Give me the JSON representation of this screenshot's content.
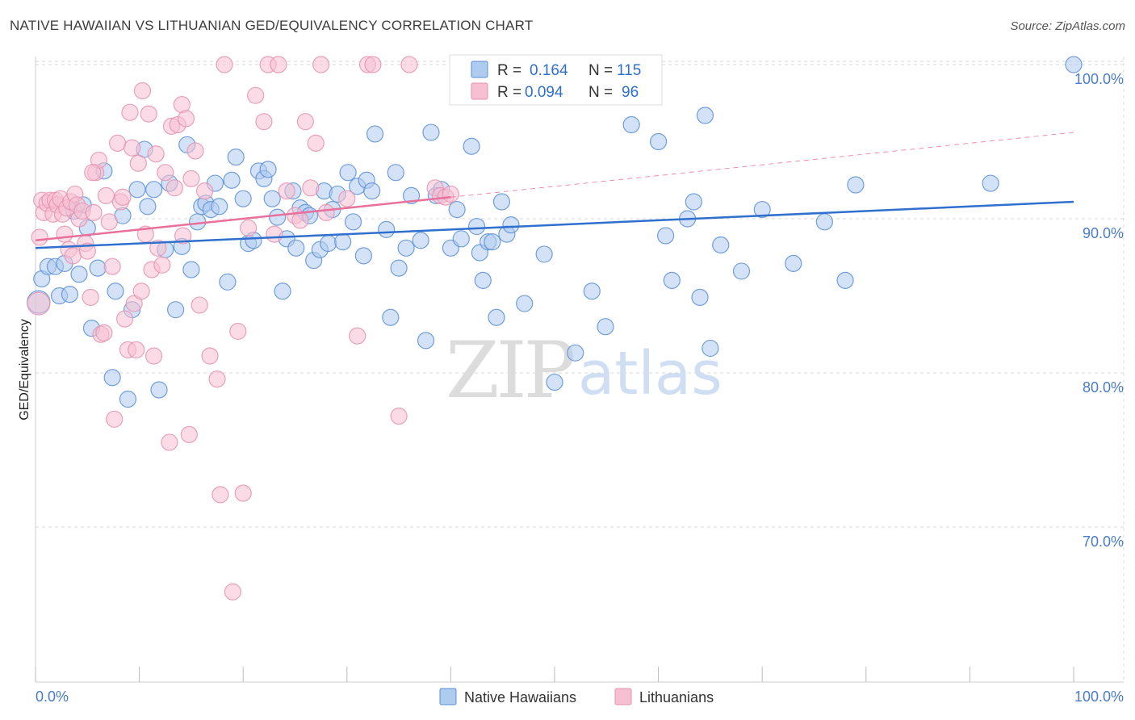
{
  "title": "NATIVE HAWAIIAN VS LITHUANIAN GED/EQUIVALENCY CORRELATION CHART",
  "source": "Source: ZipAtlas.com",
  "watermark": {
    "zip": "ZIP",
    "atlas": "atlas"
  },
  "legend": {
    "r_label": "R =",
    "n_label": "N =",
    "rows": [
      {
        "r": "0.164",
        "n": "115"
      },
      {
        "r": "0.094",
        "n": "96"
      }
    ]
  },
  "bottom_legend": [
    "Native Hawaiians",
    "Lithuanians"
  ],
  "colors": {
    "blue_fill": "#aecbf0",
    "blue_stroke": "#5b8fd6",
    "blue_line": "#2f6fce",
    "pink_fill": "#f7bfd2",
    "pink_stroke": "#e592b0",
    "pink_line": "#e8709a",
    "grid": "#d9d9d9",
    "tick_text": "#4a7cc7"
  },
  "chart_data": {
    "type": "scatter",
    "title": "NATIVE HAWAIIAN VS LITHUANIAN GED/EQUIVALENCY CORRELATION CHART",
    "xlabel": "",
    "ylabel": "GED/Equivalency",
    "xlim": [
      0,
      100
    ],
    "ylim": [
      60,
      101
    ],
    "x_ticks": [
      "0.0%",
      "100.0%"
    ],
    "y_ticks": [
      {
        "value": 100,
        "label": "100.0%"
      },
      {
        "value": 90,
        "label": "90.0%"
      },
      {
        "value": 80,
        "label": "80.0%"
      },
      {
        "value": 70,
        "label": "70.0%"
      }
    ],
    "grid": true,
    "legend_position": "top-center",
    "series": [
      {
        "name": "Native Hawaiians",
        "r": 0.164,
        "n": 115,
        "trend": {
          "x": [
            0,
            100
          ],
          "y": [
            88.1,
            91.1
          ],
          "dashed_from": null
        },
        "points": [
          [
            0.3,
            84.6
          ],
          [
            0.6,
            86.1
          ],
          [
            1.2,
            86.9
          ],
          [
            1.9,
            86.9
          ],
          [
            2.3,
            85.0
          ],
          [
            2.8,
            87.1
          ],
          [
            3.3,
            85.1
          ],
          [
            3.7,
            90.5
          ],
          [
            4.2,
            86.4
          ],
          [
            4.6,
            90.9
          ],
          [
            5.0,
            89.4
          ],
          [
            5.4,
            82.9
          ],
          [
            6.0,
            86.8
          ],
          [
            6.6,
            93.1
          ],
          [
            7.4,
            79.7
          ],
          [
            7.7,
            85.3
          ],
          [
            8.4,
            90.2
          ],
          [
            8.9,
            78.3
          ],
          [
            9.3,
            84.1
          ],
          [
            9.8,
            91.9
          ],
          [
            10.5,
            94.5
          ],
          [
            10.8,
            90.8
          ],
          [
            11.4,
            91.9
          ],
          [
            11.9,
            78.9
          ],
          [
            12.5,
            88.0
          ],
          [
            12.9,
            92.3
          ],
          [
            13.5,
            84.1
          ],
          [
            14.1,
            88.2
          ],
          [
            14.6,
            94.8
          ],
          [
            15.0,
            86.7
          ],
          [
            15.6,
            89.8
          ],
          [
            16.0,
            90.8
          ],
          [
            16.4,
            91.0
          ],
          [
            16.9,
            90.6
          ],
          [
            17.3,
            92.3
          ],
          [
            17.7,
            90.8
          ],
          [
            18.5,
            85.9
          ],
          [
            18.9,
            92.5
          ],
          [
            19.3,
            94.0
          ],
          [
            20.0,
            91.3
          ],
          [
            20.5,
            88.4
          ],
          [
            21.0,
            88.6
          ],
          [
            21.5,
            93.1
          ],
          [
            22.0,
            92.6
          ],
          [
            22.4,
            93.2
          ],
          [
            22.8,
            91.3
          ],
          [
            23.3,
            90.1
          ],
          [
            23.8,
            85.3
          ],
          [
            24.2,
            88.7
          ],
          [
            24.8,
            91.8
          ],
          [
            25.1,
            88.1
          ],
          [
            25.5,
            90.7
          ],
          [
            26.0,
            90.4
          ],
          [
            26.4,
            90.2
          ],
          [
            26.8,
            87.3
          ],
          [
            27.4,
            88.0
          ],
          [
            27.8,
            91.8
          ],
          [
            28.2,
            88.4
          ],
          [
            28.6,
            90.6
          ],
          [
            29.1,
            91.6
          ],
          [
            29.6,
            88.5
          ],
          [
            30.1,
            93.0
          ],
          [
            30.6,
            89.8
          ],
          [
            31.0,
            92.1
          ],
          [
            31.6,
            87.6
          ],
          [
            31.9,
            92.5
          ],
          [
            32.4,
            91.8
          ],
          [
            32.7,
            95.5
          ],
          [
            33.8,
            89.3
          ],
          [
            34.2,
            83.6
          ],
          [
            34.7,
            93.0
          ],
          [
            35.0,
            86.8
          ],
          [
            35.7,
            88.1
          ],
          [
            36.2,
            91.5
          ],
          [
            37.1,
            88.6
          ],
          [
            37.6,
            82.1
          ],
          [
            38.1,
            95.6
          ],
          [
            38.6,
            91.5
          ],
          [
            39.1,
            91.9
          ],
          [
            40.0,
            88.1
          ],
          [
            40.6,
            90.6
          ],
          [
            41.0,
            88.7
          ],
          [
            42.0,
            94.7
          ],
          [
            42.5,
            89.5
          ],
          [
            42.8,
            87.8
          ],
          [
            43.1,
            86.0
          ],
          [
            43.6,
            88.5
          ],
          [
            44.0,
            88.5
          ],
          [
            44.4,
            83.6
          ],
          [
            44.9,
            91.1
          ],
          [
            45.4,
            89.0
          ],
          [
            45.8,
            89.6
          ],
          [
            47.1,
            84.5
          ],
          [
            49.0,
            87.7
          ],
          [
            50.0,
            79.4
          ],
          [
            52.0,
            81.3
          ],
          [
            53.6,
            85.3
          ],
          [
            54.9,
            83.0
          ],
          [
            57.4,
            96.1
          ],
          [
            59.0,
            100.0
          ],
          [
            60.0,
            95.0
          ],
          [
            60.7,
            88.9
          ],
          [
            61.3,
            86.0
          ],
          [
            62.8,
            90.0
          ],
          [
            63.4,
            91.1
          ],
          [
            64.0,
            84.9
          ],
          [
            64.5,
            96.7
          ],
          [
            65.0,
            81.6
          ],
          [
            66.0,
            88.3
          ],
          [
            68.0,
            86.6
          ],
          [
            70.0,
            90.6
          ],
          [
            73.0,
            87.1
          ],
          [
            76.0,
            89.8
          ],
          [
            78.0,
            86.0
          ],
          [
            79.0,
            92.2
          ],
          [
            92.0,
            92.3
          ],
          [
            100.0,
            100.0
          ]
        ]
      },
      {
        "name": "Lithuanians",
        "r": 0.094,
        "n": 96,
        "trend": {
          "x": [
            0,
            100
          ],
          "y": [
            88.6,
            95.6
          ],
          "dashed_from": 40
        },
        "points": [
          [
            0.3,
            84.5
          ],
          [
            0.4,
            88.8
          ],
          [
            0.6,
            91.2
          ],
          [
            0.8,
            90.4
          ],
          [
            1.1,
            91.0
          ],
          [
            1.4,
            91.2
          ],
          [
            1.7,
            90.3
          ],
          [
            1.9,
            91.2
          ],
          [
            2.1,
            90.9
          ],
          [
            2.4,
            91.3
          ],
          [
            2.6,
            90.3
          ],
          [
            2.8,
            89.0
          ],
          [
            3.0,
            90.7
          ],
          [
            3.2,
            88.0
          ],
          [
            3.4,
            91.1
          ],
          [
            3.6,
            87.6
          ],
          [
            3.8,
            91.6
          ],
          [
            4.0,
            90.9
          ],
          [
            4.2,
            90.0
          ],
          [
            4.5,
            90.5
          ],
          [
            4.8,
            88.4
          ],
          [
            5.0,
            87.9
          ],
          [
            5.3,
            84.9
          ],
          [
            5.6,
            90.4
          ],
          [
            5.8,
            93.0
          ],
          [
            6.1,
            93.8
          ],
          [
            6.3,
            82.5
          ],
          [
            6.6,
            82.6
          ],
          [
            6.8,
            91.5
          ],
          [
            7.1,
            89.8
          ],
          [
            7.4,
            86.9
          ],
          [
            7.6,
            77.0
          ],
          [
            7.9,
            94.9
          ],
          [
            8.2,
            91.1
          ],
          [
            8.4,
            91.4
          ],
          [
            8.6,
            83.5
          ],
          [
            8.9,
            81.5
          ],
          [
            9.1,
            96.9
          ],
          [
            9.3,
            94.6
          ],
          [
            9.5,
            84.5
          ],
          [
            9.9,
            93.6
          ],
          [
            10.2,
            85.3
          ],
          [
            10.6,
            89.0
          ],
          [
            10.9,
            96.8
          ],
          [
            11.2,
            86.7
          ],
          [
            11.4,
            81.1
          ],
          [
            11.8,
            88.1
          ],
          [
            12.2,
            87.0
          ],
          [
            12.5,
            93.0
          ],
          [
            12.9,
            75.5
          ],
          [
            13.1,
            96.0
          ],
          [
            13.4,
            92.0
          ],
          [
            13.7,
            96.1
          ],
          [
            14.1,
            97.4
          ],
          [
            14.5,
            96.5
          ],
          [
            14.8,
            76.0
          ],
          [
            15.0,
            92.6
          ],
          [
            15.4,
            94.4
          ],
          [
            15.8,
            84.4
          ],
          [
            16.3,
            91.8
          ],
          [
            16.8,
            81.1
          ],
          [
            17.5,
            79.6
          ],
          [
            17.8,
            72.1
          ],
          [
            18.2,
            100.0
          ],
          [
            19.0,
            65.8
          ],
          [
            19.5,
            82.7
          ],
          [
            20.0,
            72.2
          ],
          [
            20.5,
            89.4
          ],
          [
            21.2,
            98.0
          ],
          [
            22.0,
            96.3
          ],
          [
            22.4,
            100.0
          ],
          [
            23.0,
            89.0
          ],
          [
            23.4,
            100.0
          ],
          [
            24.2,
            91.8
          ],
          [
            25.0,
            90.2
          ],
          [
            25.5,
            89.9
          ],
          [
            26.0,
            96.3
          ],
          [
            26.5,
            92.0
          ],
          [
            27.0,
            94.9
          ],
          [
            27.5,
            100.0
          ],
          [
            28.0,
            90.4
          ],
          [
            30.0,
            91.3
          ],
          [
            31.0,
            82.4
          ],
          [
            32.0,
            100.0
          ],
          [
            32.5,
            100.0
          ],
          [
            35.0,
            77.2
          ],
          [
            36.0,
            100.0
          ],
          [
            38.5,
            92.0
          ],
          [
            39.0,
            91.5
          ],
          [
            39.5,
            91.4
          ],
          [
            40.0,
            91.6
          ],
          [
            10.3,
            98.3
          ],
          [
            14.2,
            88.9
          ],
          [
            11.6,
            94.2
          ],
          [
            5.5,
            93.0
          ],
          [
            9.7,
            81.5
          ]
        ]
      }
    ]
  }
}
